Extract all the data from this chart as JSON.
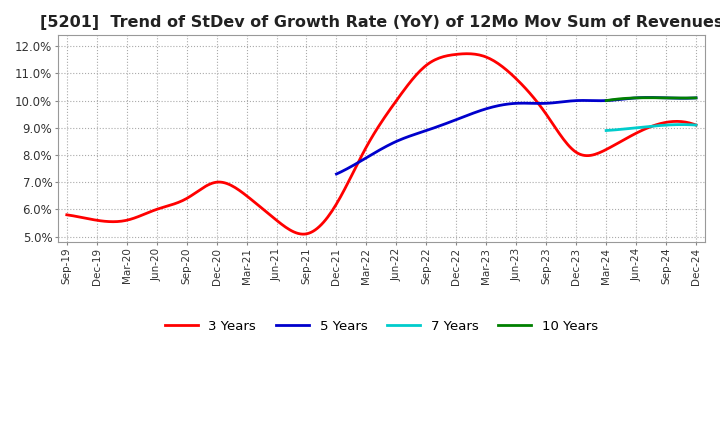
{
  "title": "[5201]  Trend of StDev of Growth Rate (YoY) of 12Mo Mov Sum of Revenues",
  "title_fontsize": 11.5,
  "ylim": [
    0.048,
    0.124
  ],
  "yticks": [
    0.05,
    0.06,
    0.07,
    0.08,
    0.09,
    0.1,
    0.11,
    0.12
  ],
  "yticklabels": [
    "5.0%",
    "6.0%",
    "7.0%",
    "8.0%",
    "9.0%",
    "10.0%",
    "11.0%",
    "12.0%"
  ],
  "x_labels": [
    "Sep-19",
    "Dec-19",
    "Mar-20",
    "Jun-20",
    "Sep-20",
    "Dec-20",
    "Mar-21",
    "Jun-21",
    "Sep-21",
    "Dec-21",
    "Mar-22",
    "Jun-22",
    "Sep-22",
    "Dec-22",
    "Mar-23",
    "Jun-23",
    "Sep-23",
    "Dec-23",
    "Mar-24",
    "Jun-24",
    "Sep-24",
    "Dec-24"
  ],
  "colors": {
    "3 Years": "#ff0000",
    "5 Years": "#0000cc",
    "7 Years": "#00cccc",
    "10 Years": "#008000"
  },
  "line_width": 2.0,
  "background_color": "#ffffff",
  "plot_bg_color": "#ffffff",
  "grid_color": "#aaaaaa",
  "series": {
    "3 Years": [
      0.058,
      0.056,
      0.056,
      0.06,
      0.064,
      0.07,
      0.065,
      0.056,
      0.051,
      0.062,
      0.083,
      0.1,
      0.113,
      0.117,
      0.116,
      0.108,
      0.095,
      0.081,
      0.082,
      0.088,
      0.092,
      0.091
    ],
    "5 Years": [
      null,
      null,
      null,
      null,
      null,
      null,
      null,
      null,
      null,
      0.073,
      0.079,
      0.085,
      0.089,
      0.093,
      0.097,
      0.099,
      0.099,
      0.1,
      0.1,
      0.101,
      0.101,
      0.101
    ],
    "7 Years": [
      null,
      null,
      null,
      null,
      null,
      null,
      null,
      null,
      null,
      null,
      null,
      null,
      null,
      null,
      null,
      null,
      null,
      null,
      0.089,
      0.09,
      0.091,
      0.091
    ],
    "10 Years": [
      null,
      null,
      null,
      null,
      null,
      null,
      null,
      null,
      null,
      null,
      null,
      null,
      null,
      null,
      null,
      null,
      null,
      null,
      0.1,
      0.101,
      0.101,
      0.101
    ]
  }
}
